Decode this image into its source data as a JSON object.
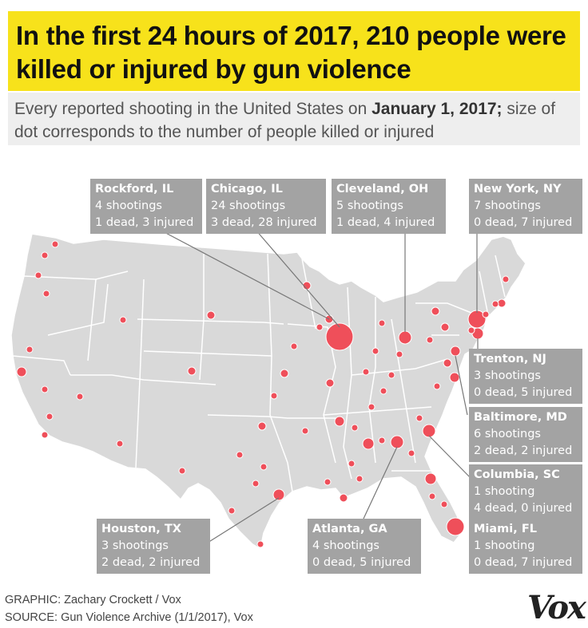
{
  "title": "In the first 24 hours of 2017, 210 people were killed or injured by gun violence",
  "subtitle_pre": "Every reported shooting in the United States on ",
  "subtitle_date": "January 1, 2017;",
  "subtitle_post": " size of dot corresponds to the number of people killed or injured",
  "colors": {
    "dot": "#ef4f5a",
    "land": "#d9d9d9",
    "border": "#ffffff",
    "callout": "#a3a3a3",
    "title_bg": "#f7e21b"
  },
  "callouts": [
    {
      "city": "Rockford, IL",
      "shootings": "4 shootings",
      "casualties": "1 dead, 3 injured"
    },
    {
      "city": "Chicago, IL",
      "shootings": "24 shootings",
      "casualties": "3 dead, 28 injured"
    },
    {
      "city": "Cleveland, OH",
      "shootings": "5 shootings",
      "casualties": "1 dead, 4 injured"
    },
    {
      "city": "New York, NY",
      "shootings": "7 shootings",
      "casualties": "0 dead, 7 injured"
    },
    {
      "city": "Trenton, NJ",
      "shootings": "3 shootings",
      "casualties": "0 dead, 5 injured"
    },
    {
      "city": "Baltimore, MD",
      "shootings": "6 shootings",
      "casualties": "2 dead, 2 injured"
    },
    {
      "city": "Columbia, SC",
      "shootings": "1 shooting",
      "casualties": "4 dead, 0 injured"
    },
    {
      "city": "Miami, FL",
      "shootings": "1 shooting",
      "casualties": "0 dead, 7 injured"
    },
    {
      "city": "Atlanta, GA",
      "shootings": "4 shootings",
      "casualties": "0 dead, 5 injured"
    },
    {
      "city": "Houston, TX",
      "shootings": "3 shootings",
      "casualties": "2 dead, 2 injured"
    }
  ],
  "credits": {
    "graphic": "GRAPHIC: Zachary Crockett / Vox",
    "source": "SOURCE: Gun Violence Archive (1/1/2017), Vox"
  },
  "logo_text": "Vox"
}
